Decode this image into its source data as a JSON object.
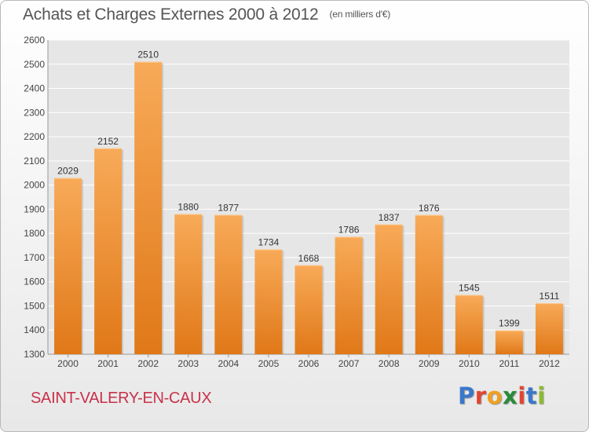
{
  "header": {
    "title": "Achats et Charges Externes 2000 à 2012",
    "subtitle": "(en milliers d'€)"
  },
  "footer": {
    "city": "SAINT-VALERY-EN-CAUX",
    "logo_text": "Proxiti",
    "logo_letters": [
      "P",
      "r",
      "o",
      "x",
      "i",
      "t",
      "i"
    ],
    "logo_colors": [
      "#3a78c9",
      "#e2452f",
      "#f0a020",
      "#2a8a3a",
      "#e2452f",
      "#3a78c9",
      "#8dbb2e"
    ]
  },
  "colors": {
    "bar_light": "#f8aa58",
    "bar_dark": "#e07818",
    "title": "#555555",
    "city": "#c8324a",
    "plot_background": "#e6e6e6",
    "grid": "#ffffff"
  },
  "chart_data": {
    "type": "bar",
    "title": "Achats et Charges Externes 2000 à 2012",
    "subtitle": "(en milliers d'€)",
    "categories": [
      "2000",
      "2001",
      "2002",
      "2003",
      "2004",
      "2005",
      "2006",
      "2007",
      "2008",
      "2009",
      "2010",
      "2011",
      "2012"
    ],
    "values": [
      2029,
      2152,
      2510,
      1880,
      1877,
      1734,
      1668,
      1786,
      1837,
      1876,
      1545,
      1399,
      1511
    ],
    "ylim": [
      1300,
      2600
    ],
    "yticks": [
      1300,
      1400,
      1500,
      1600,
      1700,
      1800,
      1900,
      2000,
      2100,
      2200,
      2300,
      2400,
      2500,
      2600
    ],
    "grid": true,
    "data_labels": true
  }
}
